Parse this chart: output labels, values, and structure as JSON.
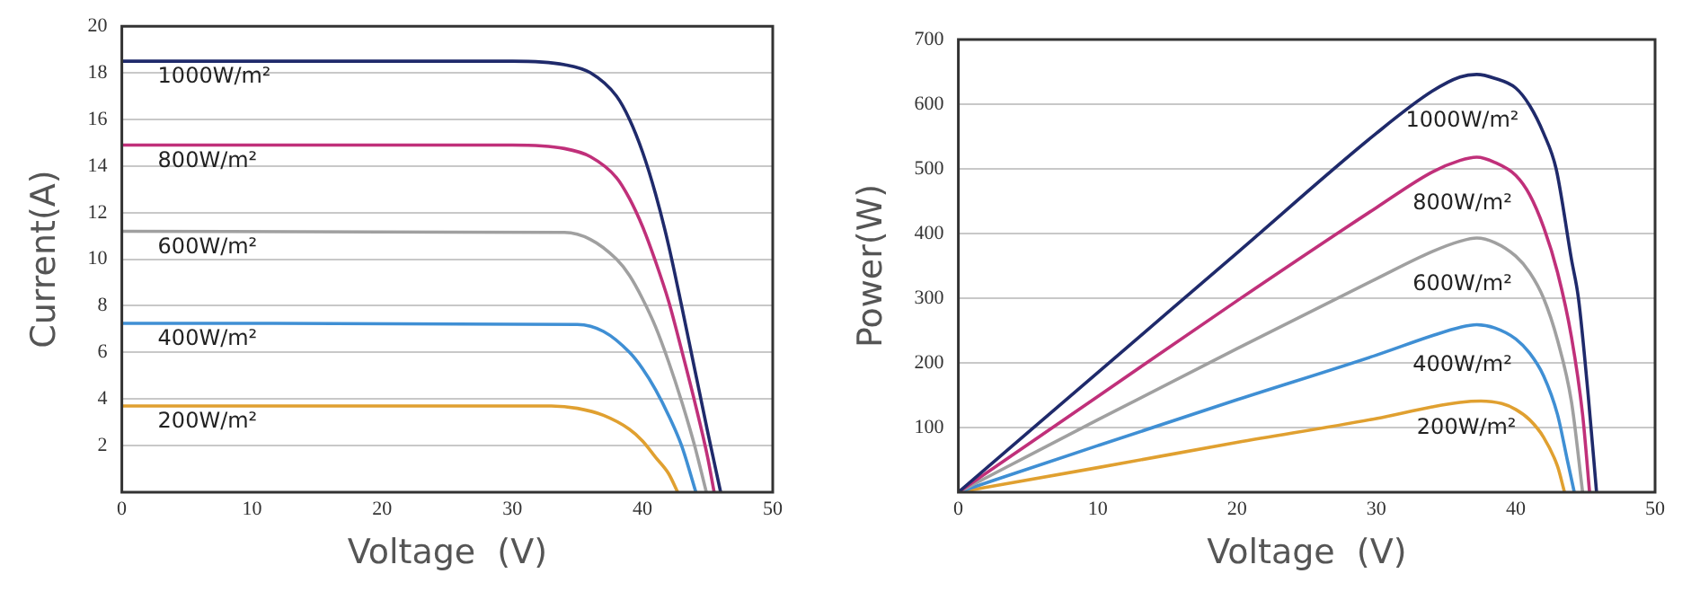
{
  "chart_data": [
    {
      "type": "line",
      "xlabel": "Voltage  (V)",
      "ylabel": "Current(A)",
      "xlim": [
        0,
        50
      ],
      "xticks": [
        0,
        10,
        20,
        30,
        40,
        50
      ],
      "ylim": [
        0,
        20
      ],
      "yticks": [
        2,
        4,
        6,
        8,
        10,
        12,
        14,
        16,
        18,
        20
      ],
      "grid": "y",
      "legend": false,
      "marker": "none",
      "line_style": "solid",
      "series": [
        {
          "name": "1000W/m²",
          "color": "#1f2a6b",
          "x": [
            0,
            30,
            34,
            36,
            38,
            39,
            40,
            41,
            42,
            43,
            44,
            45,
            46
          ],
          "values": [
            18.5,
            18.5,
            18.35,
            18.0,
            17.0,
            16.0,
            14.6,
            12.8,
            10.6,
            8,
            5.3,
            2.6,
            0
          ]
        },
        {
          "name": "800W/m²",
          "color": "#c0307a",
          "x": [
            0,
            30,
            34,
            36,
            38,
            39,
            40,
            41,
            42,
            43,
            44,
            45,
            45.5
          ],
          "values": [
            14.9,
            14.9,
            14.75,
            14.4,
            13.5,
            12.6,
            11.4,
            9.9,
            8.2,
            6.1,
            3.9,
            1.5,
            0
          ]
        },
        {
          "name": "600W/m²",
          "color": "#a0a0a0",
          "x": [
            0,
            34,
            36,
            38,
            39,
            40,
            41,
            42,
            43,
            44,
            44.9
          ],
          "values": [
            11.2,
            11.15,
            10.85,
            10.0,
            9.3,
            8.3,
            7.1,
            5.6,
            3.9,
            2.0,
            0
          ]
        },
        {
          "name": "400W/m²",
          "color": "#3f8fd4",
          "x": [
            0,
            35,
            37,
            39,
            40,
            41,
            42,
            43,
            44.1
          ],
          "values": [
            7.25,
            7.2,
            6.9,
            6.0,
            5.3,
            4.4,
            3.3,
            2.0,
            0
          ]
        },
        {
          "name": "200W/m²",
          "color": "#e0a030",
          "x": [
            0,
            33,
            35,
            37,
            39,
            40,
            41,
            42,
            42.7
          ],
          "values": [
            3.7,
            3.7,
            3.6,
            3.3,
            2.7,
            2.2,
            1.5,
            0.8,
            0
          ]
        }
      ]
    },
    {
      "type": "line",
      "xlabel": "Voltage  (V)",
      "ylabel": "Power(W)",
      "xlim": [
        0,
        50
      ],
      "xticks": [
        0,
        10,
        20,
        30,
        40,
        50
      ],
      "ylim": [
        0,
        700
      ],
      "yticks": [
        100,
        200,
        300,
        400,
        500,
        600,
        700
      ],
      "grid": "y",
      "legend": false,
      "marker": "none",
      "line_style": "solid",
      "series": [
        {
          "name": "1000W/m²",
          "color": "#1f2a6b",
          "x": [
            0,
            10,
            20,
            30,
            34,
            36,
            37.2,
            38.5,
            40,
            41,
            42,
            42.9,
            44,
            44.5,
            45.2,
            45.8
          ],
          "values": [
            0,
            185,
            370,
            555,
            620,
            642,
            646,
            640,
            625,
            598,
            555,
            500,
            360,
            300,
            150,
            0
          ]
        },
        {
          "name": "800W/m²",
          "color": "#c0307a",
          "x": [
            0,
            10,
            20,
            30,
            34,
            36,
            37.2,
            38.5,
            40,
            41,
            42,
            43,
            44,
            44.8,
            45.3
          ],
          "values": [
            0,
            148,
            296,
            440,
            495,
            513,
            518,
            510,
            490,
            460,
            410,
            340,
            240,
            120,
            0
          ]
        },
        {
          "name": "600W/m²",
          "color": "#a0a0a0",
          "x": [
            0,
            10,
            20,
            30,
            34,
            36,
            37.2,
            38.5,
            40,
            41,
            42,
            43,
            44,
            44.8
          ],
          "values": [
            0,
            112,
            222,
            330,
            372,
            388,
            393,
            386,
            365,
            340,
            300,
            235,
            140,
            0
          ]
        },
        {
          "name": "400W/m²",
          "color": "#3f8fd4",
          "x": [
            0,
            10,
            20,
            30,
            34,
            36,
            37.2,
            38.5,
            40,
            41,
            42,
            43,
            43.7,
            44.2
          ],
          "values": [
            0,
            72,
            143,
            212,
            242,
            255,
            259,
            254,
            237,
            215,
            180,
            120,
            50,
            0
          ]
        },
        {
          "name": "200W/m²",
          "color": "#e0a030",
          "x": [
            0,
            10,
            20,
            30,
            34,
            36,
            37.5,
            39,
            40,
            41,
            42,
            43,
            43.5
          ],
          "values": [
            0,
            38,
            77,
            114,
            132,
            139,
            141,
            137,
            128,
            112,
            85,
            40,
            0
          ]
        }
      ]
    }
  ]
}
